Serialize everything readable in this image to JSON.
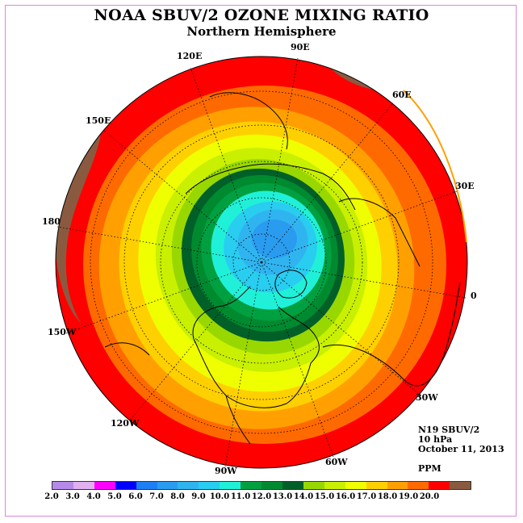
{
  "title": "NOAA SBUV/2 OZONE MIXING RATIO",
  "subtitle": "Northern Hemisphere",
  "info": {
    "instrument": "N19 SBUV/2",
    "level": "10 hPa",
    "date": "October 11, 2013",
    "units": "PPM"
  },
  "longitude_labels": [
    "90E",
    "60E",
    "30E",
    "0",
    "30W",
    "60W",
    "90W",
    "120W",
    "150W",
    "180",
    "150E",
    "120E"
  ],
  "colorbar": {
    "ticks": [
      "2.0",
      "3.0",
      "4.0",
      "5.0",
      "6.0",
      "7.0",
      "8.0",
      "9.0",
      "10.0",
      "11.0",
      "12.0",
      "13.0",
      "14.0",
      "15.0",
      "16.0",
      "17.0",
      "18.0",
      "19.0",
      "20.0"
    ],
    "colors": [
      "#b58ae8",
      "#e0b0f0",
      "#ff00ff",
      "#0000ff",
      "#1e7ff5",
      "#2a9cf0",
      "#30b4f0",
      "#28cdf0",
      "#20f0d8",
      "#00a040",
      "#008a30",
      "#006028",
      "#98d800",
      "#c8f000",
      "#f0ff00",
      "#ffd000",
      "#ffa000",
      "#ff6a00",
      "#ff0000",
      "#8a5a40"
    ]
  }
}
